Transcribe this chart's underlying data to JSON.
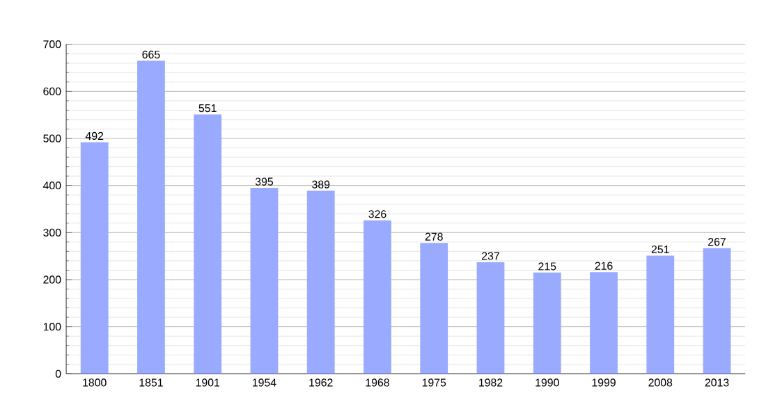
{
  "chart_data": {
    "type": "bar",
    "categories": [
      "1800",
      "1851",
      "1901",
      "1954",
      "1962",
      "1968",
      "1975",
      "1982",
      "1990",
      "1999",
      "2008",
      "2013"
    ],
    "values": [
      492,
      665,
      551,
      395,
      389,
      326,
      278,
      237,
      215,
      216,
      251,
      267
    ],
    "color": "#99aaff",
    "ylim": [
      0,
      700
    ],
    "yticks": [
      0,
      100,
      200,
      300,
      400,
      500,
      600,
      700
    ],
    "grid": "y",
    "data_labels": true
  }
}
